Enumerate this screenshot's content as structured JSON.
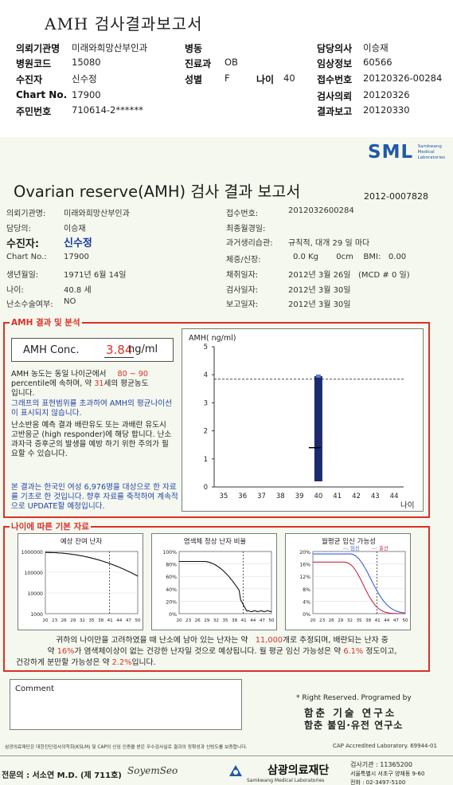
{
  "header": {
    "title": "AMH 검사결과보고서",
    "rows": [
      [
        {
          "k": "의뢰기관명",
          "v": "미래와희망산부인과"
        },
        {
          "k": "병동",
          "v": ""
        },
        {
          "k": "담당의사",
          "v": "이승재"
        }
      ],
      [
        {
          "k": "병원코드",
          "v": "15080"
        },
        {
          "k": "진료과",
          "v": "OB"
        },
        {
          "k": "임상정보",
          "v": "60566"
        }
      ],
      [
        {
          "k": "수진자",
          "v": "신수정"
        },
        {
          "k": "성별",
          "v": "F"
        },
        {
          "k": "접수번호",
          "v": "20120326-00284"
        }
      ],
      [
        {
          "k": "Chart No.",
          "v": "17900"
        },
        {
          "k": "",
          "v": ""
        },
        {
          "k": "검사의뢰",
          "v": "20120326"
        }
      ],
      [
        {
          "k": "주민번호",
          "v": "710614-2******"
        },
        {
          "k": "",
          "v": ""
        },
        {
          "k": "결과보고",
          "v": "20120330"
        }
      ]
    ],
    "age_key": "나이",
    "age_val": "40"
  },
  "report": {
    "logo": "SML",
    "logo_sub": "Samkwang Medical Laboratories",
    "title": "Ovarian reserve(AMH) 검사 결과 보고서",
    "doc_no": "2012-0007828",
    "left_info": [
      {
        "k": "의뢰기관명:",
        "v": "미래와희망산부인과"
      },
      {
        "k": "담당의:",
        "v": "이승재"
      },
      {
        "k": "수진자:",
        "v": "신수정"
      },
      {
        "k": "Chart No.:",
        "v": "17900"
      },
      {
        "k": "생년월일:",
        "v": "1971년 6월 14일"
      },
      {
        "k": "나이:",
        "v": "40.8 세"
      },
      {
        "k": "난소수술여부:",
        "v": "NO"
      }
    ],
    "right_info": [
      {
        "k": "접수번호:",
        "v": "2012032600284"
      },
      {
        "k": "최종월경일:",
        "v": ""
      },
      {
        "k": "과거생리습관:",
        "v": "규칙적, 대개  29 일 마다"
      },
      {
        "k": "체중/신장:",
        "v": "0.0 Kg       0cm    BMI:   0.00"
      },
      {
        "k": "채취일자:",
        "v": "2012년 3월 26일   (MCD # 0 일)"
      },
      {
        "k": "검사일자:",
        "v": "2012년 3월 30일"
      },
      {
        "k": "보고일자:",
        "v": "2012년 3월 30일"
      }
    ],
    "section1": "AMH 결과 및 분석",
    "amh_label": "AMH Conc.",
    "amh_value": "3.84",
    "amh_unit": "ng/ml",
    "p1a": "AMH 농도는 동일 나이군에서",
    "p1b": "80 ~  90",
    "p1c": "percentile에 속하며,  약",
    "p1d": "31",
    "p1e": "세의 평균농도",
    "p1f": "입니다.",
    "p2": "그래프의 표현범위를 초과하여 AMH의 평균나이선이 표시되지 않습니다.",
    "p3": "난소반응 예측 결과 배란유도 또는 과배란 유도시 고반응군 (high responder)에 해당 합니다. 난소과자극 증후군의 발생을 예방 하기 위한 주의가 필요할 수 있습니다.",
    "p4": "본 결과는 한국인 여성 6,976명을 대상으로 한 자료를 기초로 한 것입니다. 향후 자료를 축적하여 계속적으로 UPDATE할 예정입니다.",
    "section2": "나이에 따른 기본 자료",
    "bottom_text1a": "귀하의 나이만을 고려하였을 때 난소에 남아 있는 난자는 약",
    "bottom_text1b": "11,000",
    "bottom_text1c": "개로 추정되며, 배란되는 난자 중",
    "bottom_text2a": "약",
    "bottom_text2b": "16%",
    "bottom_text2c": "가 염색체이상이 없는 건강한 난자일 것으로 예상됩니다. 월 평균 임신 가능성은 약",
    "bottom_text2d": "6.1%",
    "bottom_text2e": "정도이고,",
    "bottom_text3a": "건강하게 분만할 가능성은 약",
    "bottom_text3b": "2.2%",
    "bottom_text3c": "입니다.",
    "comment": "Comment",
    "rights": "* Right Reserved. Programed by",
    "inst1": "함춘 기술 연구소",
    "inst2": "함춘 불임·유전 연구소",
    "footnote": "삼광의료재단은 대한진단검사의학회(KSLM) 및 CAP의 신임 인증을 받은 우수검사실로 결과의 정확성과 신빙도를 보증합니다.",
    "cap": "CAP Accredited Laboratory. 69944-01",
    "doctor": "전문의 : 서소연 M.D. (제 711호)",
    "signature": "SoyemSeo",
    "foundation": "삼광의료재단",
    "foundation_sub": "Samkwang Medical Laboratories",
    "contact1": "검사기관 : 11365200",
    "contact2": "서울특별시 서초구 양재동 9-60",
    "contact3": "전화 : 02-3497-5100"
  },
  "chart_data": [
    {
      "type": "bar",
      "ylabel": "AMH( ng/ml)",
      "xlabel": "나이",
      "x": [
        35,
        36,
        37,
        38,
        39,
        40,
        41,
        42,
        43,
        44
      ],
      "ylim": [
        0,
        5
      ],
      "yticks": [
        0,
        1,
        2,
        3,
        4,
        5
      ],
      "bar_x": 40,
      "bar_range": [
        0.2,
        3.95
      ],
      "median": 1.4,
      "reference_line": 3.84
    },
    {
      "type": "line",
      "title": "예상 잔여 난자",
      "x_ticks": [
        20,
        23,
        26,
        29,
        32,
        35,
        38,
        41,
        44,
        47,
        50
      ],
      "y_ticks": [
        "1000000",
        "100000",
        "10000",
        "1000"
      ],
      "current_age": 40.8
    },
    {
      "type": "line",
      "title": "염색체 정상 난자 비율",
      "x_ticks": [
        20,
        23,
        26,
        29,
        32,
        35,
        38,
        41,
        44,
        47,
        50
      ],
      "y_ticks": [
        "100%",
        "80%",
        "60%",
        "40%",
        "20%",
        "0%"
      ],
      "current_age": 40.8
    },
    {
      "type": "line",
      "title": "월평균 임신 가능성",
      "legend": [
        "임신",
        "출산"
      ],
      "legend_colors": [
        "#3b5bd8",
        "#c22b4a"
      ],
      "x_ticks": [
        20,
        23,
        26,
        29,
        32,
        35,
        38,
        41,
        44,
        47,
        50
      ],
      "y_ticks": [
        "20%",
        "16%",
        "12%",
        "8%",
        "4%",
        "0%"
      ],
      "current_age": 40.8
    }
  ]
}
